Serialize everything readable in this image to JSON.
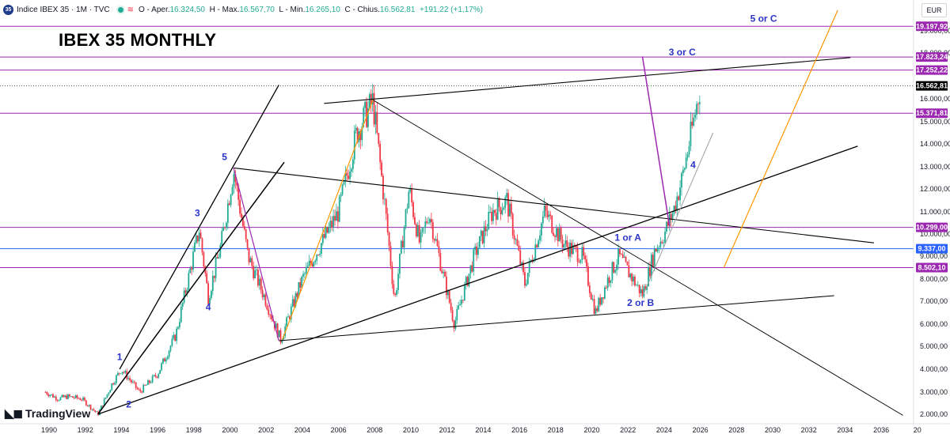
{
  "legend": {
    "symbol_badge": "35",
    "title": "Indice IBEX 35 · 1M · TVC",
    "open_label": "O - Aper.",
    "open_value": "16.324,50",
    "high_label": "H - Max.",
    "high_value": "16.567,70",
    "low_label": "L - Min.",
    "low_value": "16.265,10",
    "close_label": "C - Chius.",
    "close_value": "16.562,81",
    "change": "+191,22 (+1,17%)"
  },
  "currency": "EUR",
  "logo_text": "TradingView",
  "chart_data": {
    "type": "candlestick",
    "title": "IBEX 35 MONTHLY",
    "colors": {
      "up": "#22ab94",
      "down": "#f23645",
      "level": "#9c27b0",
      "blue_level": "#2962ff",
      "trend": "#000000",
      "orange": "#ff9800",
      "gray": "#9e9e9e"
    },
    "x_ticks": [
      "1990",
      "1992",
      "1994",
      "1996",
      "1998",
      "2000",
      "2002",
      "2004",
      "2006",
      "2008",
      "2010",
      "2012",
      "2014",
      "2016",
      "2018",
      "2020",
      "2022",
      "2024",
      "2026",
      "2028",
      "2030",
      "2032",
      "2034",
      "2036",
      "20"
    ],
    "y_ticks": [
      "2.000,00",
      "3.000,00",
      "4.000,00",
      "5.000,00",
      "6.000,00",
      "7.000,00",
      "8.000,00",
      "9.000,00",
      "10.000,00",
      "11.000,00",
      "12.000,00",
      "13.000,00",
      "14.000,00",
      "15.000,00",
      "16.000,00",
      "18.000,00",
      "19.000,00"
    ],
    "price_badges": [
      {
        "label": "19.197,92",
        "value": 19197.92,
        "color": "#9c27b0"
      },
      {
        "label": "17.823,24",
        "value": 17823.24,
        "color": "#9c27b0"
      },
      {
        "label": "17.252,22",
        "value": 17252.22,
        "color": "#9c27b0"
      },
      {
        "label": "16.562,81",
        "value": 16562.81,
        "color": "#000000"
      },
      {
        "label": "15.371,81",
        "value": 15371.81,
        "color": "#9c27b0"
      },
      {
        "label": "10.299,00",
        "value": 10299.0,
        "color": "#9c27b0"
      },
      {
        "label": "9.337,00",
        "value": 9337.0,
        "color": "#2962ff"
      },
      {
        "label": "8.502,10",
        "value": 8502.1,
        "color": "#9c27b0"
      }
    ],
    "price_path": [
      [
        1989.8,
        3000
      ],
      [
        1990.5,
        2700
      ],
      [
        1991.0,
        2800
      ],
      [
        1991.8,
        2700
      ],
      [
        1992.7,
        2000
      ],
      [
        1993.5,
        3400
      ],
      [
        1994.0,
        4000
      ],
      [
        1995.0,
        3000
      ],
      [
        1996.0,
        3800
      ],
      [
        1997.0,
        5500
      ],
      [
        1998.3,
        10200
      ],
      [
        1998.8,
        7200
      ],
      [
        1999.5,
        9500
      ],
      [
        2000.2,
        12850
      ],
      [
        2001.0,
        9000
      ],
      [
        2002.0,
        7000
      ],
      [
        2002.8,
        5300
      ],
      [
        2004.0,
        8000
      ],
      [
        2005.0,
        9500
      ],
      [
        2006.0,
        11000
      ],
      [
        2007.0,
        14500
      ],
      [
        2007.9,
        15900
      ],
      [
        2008.6,
        11000
      ],
      [
        2009.1,
        7000
      ],
      [
        2009.9,
        12000
      ],
      [
        2010.5,
        9500
      ],
      [
        2011.0,
        11000
      ],
      [
        2012.4,
        6000
      ],
      [
        2013.5,
        9000
      ],
      [
        2014.5,
        11000
      ],
      [
        2015.3,
        11500
      ],
      [
        2016.3,
        7800
      ],
      [
        2017.4,
        11000
      ],
      [
        2018.5,
        9500
      ],
      [
        2019.5,
        9000
      ],
      [
        2020.2,
        6500
      ],
      [
        2020.9,
        8000
      ],
      [
        2021.5,
        9000
      ],
      [
        2022.8,
        7300
      ],
      [
        2023.5,
        9300
      ],
      [
        2024.0,
        10000
      ],
      [
        2024.5,
        11000
      ],
      [
        2025.0,
        12500
      ],
      [
        2025.5,
        14500
      ],
      [
        2026.0,
        16562
      ]
    ],
    "annotations": [
      {
        "text": "1",
        "x": 1993.9,
        "y": 4400
      },
      {
        "text": "2",
        "x": 1994.4,
        "y": 2300
      },
      {
        "text": "3",
        "x": 1998.2,
        "y": 10800
      },
      {
        "text": "4",
        "x": 1998.8,
        "y": 6600
      },
      {
        "text": "5",
        "x": 1999.7,
        "y": 13300
      },
      {
        "text": "1 or A",
        "x": 2022.0,
        "y": 9700
      },
      {
        "text": "2 or B",
        "x": 2022.7,
        "y": 6800
      },
      {
        "text": "4",
        "x": 2025.6,
        "y": 12950
      },
      {
        "text": "3 or C",
        "x": 2025.0,
        "y": 17900
      },
      {
        "text": "5 or C",
        "x": 2029.5,
        "y": 19400
      }
    ]
  }
}
